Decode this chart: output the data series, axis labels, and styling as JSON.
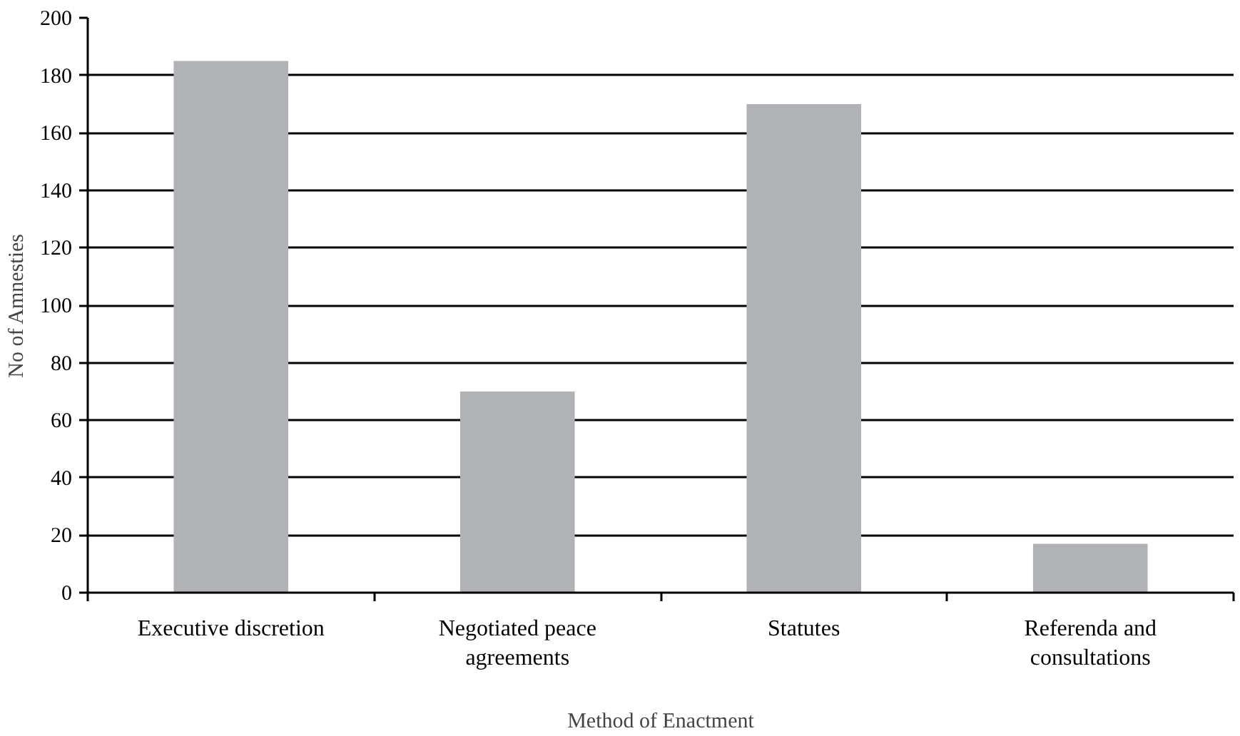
{
  "chart_data": {
    "type": "bar",
    "xlabel": "Method of Enactment",
    "ylabel": "No of Amnesties",
    "categories": [
      "Executive discretion",
      "Negotiated peace agreements",
      "Statutes",
      "Referenda and consultations"
    ],
    "values": [
      185,
      70,
      170,
      17
    ],
    "color": "#b1b2b6",
    "ylim": [
      0,
      200
    ],
    "yticks": [
      0,
      20,
      40,
      60,
      80,
      100,
      120,
      140,
      160,
      180,
      200
    ],
    "grid": "y"
  }
}
